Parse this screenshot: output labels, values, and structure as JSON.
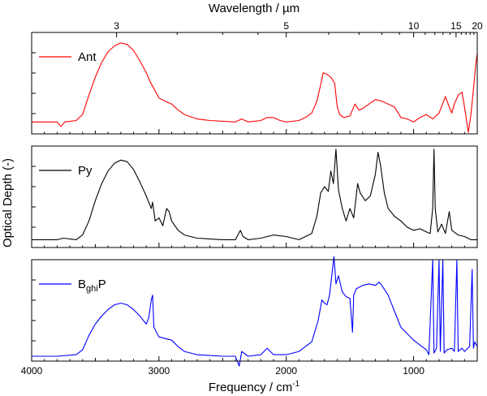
{
  "chart_data": {
    "type": "line",
    "title": "",
    "xlabel": "Frequency / cm",
    "xlabel_sup": "-1",
    "ylabel": "Optical Depth (-)",
    "top_xlabel": "Wavelength / µm",
    "xlim": [
      4000,
      500
    ],
    "xticks": [
      4000,
      3000,
      2000,
      1000
    ],
    "xtick_labels": [
      "4000",
      "3000",
      "2000",
      "1000"
    ],
    "top_xticks": [
      3,
      5,
      10,
      15,
      20
    ],
    "top_xtick_labels": [
      "3",
      "5",
      "10",
      "15",
      "20"
    ],
    "panels": [
      {
        "name": "Ant",
        "legend_parts": [
          "Ant"
        ],
        "color": "#ff0000",
        "ylim": [
          -0.08,
          0.6
        ],
        "points": [
          [
            4000,
            0.0
          ],
          [
            3800,
            0.0
          ],
          [
            3770,
            -0.03
          ],
          [
            3740,
            0.0
          ],
          [
            3650,
            0.01
          ],
          [
            3600,
            0.05
          ],
          [
            3550,
            0.18
          ],
          [
            3500,
            0.3
          ],
          [
            3450,
            0.4
          ],
          [
            3400,
            0.47
          ],
          [
            3350,
            0.51
          ],
          [
            3300,
            0.53
          ],
          [
            3250,
            0.52
          ],
          [
            3200,
            0.48
          ],
          [
            3150,
            0.41
          ],
          [
            3100,
            0.33
          ],
          [
            3070,
            0.27
          ],
          [
            3050,
            0.24
          ],
          [
            3000,
            0.16
          ],
          [
            2950,
            0.14
          ],
          [
            2900,
            0.12
          ],
          [
            2850,
            0.08
          ],
          [
            2800,
            0.05
          ],
          [
            2700,
            0.02
          ],
          [
            2600,
            0.01
          ],
          [
            2400,
            0.0
          ],
          [
            2350,
            0.02
          ],
          [
            2300,
            0.0
          ],
          [
            2200,
            0.01
          ],
          [
            2150,
            0.03
          ],
          [
            2100,
            0.03
          ],
          [
            2050,
            0.01
          ],
          [
            2000,
            0.0
          ],
          [
            1900,
            0.01
          ],
          [
            1850,
            0.03
          ],
          [
            1800,
            0.06
          ],
          [
            1760,
            0.14
          ],
          [
            1730,
            0.25
          ],
          [
            1710,
            0.33
          ],
          [
            1680,
            0.32
          ],
          [
            1650,
            0.3
          ],
          [
            1620,
            0.26
          ],
          [
            1600,
            0.1
          ],
          [
            1580,
            0.05
          ],
          [
            1550,
            0.03
          ],
          [
            1500,
            0.04
          ],
          [
            1460,
            0.12
          ],
          [
            1430,
            0.08
          ],
          [
            1400,
            0.09
          ],
          [
            1350,
            0.12
          ],
          [
            1300,
            0.15
          ],
          [
            1250,
            0.14
          ],
          [
            1200,
            0.12
          ],
          [
            1150,
            0.1
          ],
          [
            1100,
            0.03
          ],
          [
            1050,
            0.02
          ],
          [
            1000,
            0.0
          ],
          [
            950,
            0.03
          ],
          [
            900,
            0.05
          ],
          [
            850,
            0.02
          ],
          [
            800,
            0.06
          ],
          [
            750,
            0.17
          ],
          [
            720,
            0.1
          ],
          [
            700,
            0.06
          ],
          [
            680,
            0.12
          ],
          [
            650,
            0.18
          ],
          [
            620,
            0.2
          ],
          [
            600,
            0.1
          ],
          [
            570,
            -0.07
          ],
          [
            550,
            0.05
          ],
          [
            530,
            0.22
          ],
          [
            510,
            0.4
          ],
          [
            500,
            0.46
          ]
        ]
      },
      {
        "name": "Py",
        "legend_parts": [
          "Py"
        ],
        "color": "#000000",
        "ylim": [
          -0.05,
          0.6
        ],
        "points": [
          [
            4000,
            0.0
          ],
          [
            3800,
            0.0
          ],
          [
            3750,
            0.01
          ],
          [
            3650,
            0.0
          ],
          [
            3600,
            0.03
          ],
          [
            3550,
            0.12
          ],
          [
            3500,
            0.25
          ],
          [
            3450,
            0.36
          ],
          [
            3400,
            0.44
          ],
          [
            3350,
            0.49
          ],
          [
            3300,
            0.51
          ],
          [
            3250,
            0.5
          ],
          [
            3200,
            0.45
          ],
          [
            3150,
            0.37
          ],
          [
            3100,
            0.28
          ],
          [
            3060,
            0.2
          ],
          [
            3050,
            0.24
          ],
          [
            3030,
            0.12
          ],
          [
            3000,
            0.14
          ],
          [
            2970,
            0.09
          ],
          [
            2940,
            0.2
          ],
          [
            2920,
            0.18
          ],
          [
            2900,
            0.12
          ],
          [
            2850,
            0.06
          ],
          [
            2800,
            0.03
          ],
          [
            2700,
            0.01
          ],
          [
            2500,
            0.0
          ],
          [
            2400,
            0.0
          ],
          [
            2360,
            0.06
          ],
          [
            2340,
            0.02
          ],
          [
            2300,
            0.0
          ],
          [
            2200,
            0.01
          ],
          [
            2100,
            0.03
          ],
          [
            2000,
            0.02
          ],
          [
            1900,
            0.0
          ],
          [
            1800,
            0.04
          ],
          [
            1760,
            0.15
          ],
          [
            1730,
            0.3
          ],
          [
            1700,
            0.34
          ],
          [
            1670,
            0.31
          ],
          [
            1650,
            0.44
          ],
          [
            1630,
            0.36
          ],
          [
            1610,
            0.58
          ],
          [
            1590,
            0.32
          ],
          [
            1560,
            0.2
          ],
          [
            1530,
            0.12
          ],
          [
            1500,
            0.2
          ],
          [
            1470,
            0.14
          ],
          [
            1440,
            0.36
          ],
          [
            1420,
            0.3
          ],
          [
            1380,
            0.25
          ],
          [
            1340,
            0.28
          ],
          [
            1300,
            0.42
          ],
          [
            1280,
            0.56
          ],
          [
            1260,
            0.48
          ],
          [
            1230,
            0.3
          ],
          [
            1200,
            0.2
          ],
          [
            1150,
            0.15
          ],
          [
            1100,
            0.12
          ],
          [
            1050,
            0.08
          ],
          [
            1000,
            0.06
          ],
          [
            950,
            0.07
          ],
          [
            900,
            0.05
          ],
          [
            870,
            0.04
          ],
          [
            850,
            0.2
          ],
          [
            840,
            0.58
          ],
          [
            830,
            0.2
          ],
          [
            810,
            0.05
          ],
          [
            780,
            0.1
          ],
          [
            750,
            0.04
          ],
          [
            720,
            0.18
          ],
          [
            700,
            0.06
          ],
          [
            650,
            0.03
          ],
          [
            600,
            0.02
          ],
          [
            550,
            0.0
          ],
          [
            500,
            0.0
          ]
        ]
      },
      {
        "name": "BghiP",
        "legend_parts": [
          "B",
          "ghi",
          "P"
        ],
        "color": "#0000ff",
        "ylim": [
          -0.03,
          0.6
        ],
        "points": [
          [
            4000,
            0.0
          ],
          [
            3800,
            0.0
          ],
          [
            3650,
            0.01
          ],
          [
            3600,
            0.04
          ],
          [
            3550,
            0.13
          ],
          [
            3500,
            0.2
          ],
          [
            3450,
            0.25
          ],
          [
            3400,
            0.29
          ],
          [
            3350,
            0.32
          ],
          [
            3300,
            0.33
          ],
          [
            3250,
            0.32
          ],
          [
            3200,
            0.29
          ],
          [
            3150,
            0.25
          ],
          [
            3100,
            0.2
          ],
          [
            3080,
            0.24
          ],
          [
            3060,
            0.35
          ],
          [
            3050,
            0.38
          ],
          [
            3040,
            0.18
          ],
          [
            3000,
            0.12
          ],
          [
            2950,
            0.11
          ],
          [
            2900,
            0.1
          ],
          [
            2850,
            0.06
          ],
          [
            2800,
            0.03
          ],
          [
            2700,
            0.01
          ],
          [
            2500,
            0.0
          ],
          [
            2400,
            0.0
          ],
          [
            2370,
            -0.06
          ],
          [
            2350,
            0.03
          ],
          [
            2300,
            0.0
          ],
          [
            2200,
            0.01
          ],
          [
            2150,
            0.05
          ],
          [
            2100,
            0.01
          ],
          [
            2000,
            0.01
          ],
          [
            1900,
            0.03
          ],
          [
            1850,
            0.06
          ],
          [
            1800,
            0.09
          ],
          [
            1750,
            0.22
          ],
          [
            1720,
            0.35
          ],
          [
            1700,
            0.33
          ],
          [
            1680,
            0.32
          ],
          [
            1660,
            0.38
          ],
          [
            1640,
            0.52
          ],
          [
            1625,
            0.62
          ],
          [
            1610,
            0.45
          ],
          [
            1590,
            0.5
          ],
          [
            1560,
            0.4
          ],
          [
            1530,
            0.37
          ],
          [
            1500,
            0.36
          ],
          [
            1480,
            0.15
          ],
          [
            1470,
            0.38
          ],
          [
            1450,
            0.42
          ],
          [
            1400,
            0.44
          ],
          [
            1350,
            0.45
          ],
          [
            1300,
            0.44
          ],
          [
            1270,
            0.46
          ],
          [
            1250,
            0.44
          ],
          [
            1200,
            0.38
          ],
          [
            1150,
            0.28
          ],
          [
            1100,
            0.18
          ],
          [
            1050,
            0.14
          ],
          [
            1000,
            0.1
          ],
          [
            950,
            0.07
          ],
          [
            900,
            0.04
          ],
          [
            880,
            0.01
          ],
          [
            850,
            0.6
          ],
          [
            840,
            0.02
          ],
          [
            820,
            0.05
          ],
          [
            800,
            0.6
          ],
          [
            790,
            0.03
          ],
          [
            770,
            0.6
          ],
          [
            760,
            0.02
          ],
          [
            740,
            0.04
          ],
          [
            700,
            0.05
          ],
          [
            680,
            0.03
          ],
          [
            660,
            0.6
          ],
          [
            650,
            0.03
          ],
          [
            620,
            0.05
          ],
          [
            600,
            0.03
          ],
          [
            560,
            0.06
          ],
          [
            540,
            0.54
          ],
          [
            530,
            0.05
          ],
          [
            520,
            0.09
          ],
          [
            500,
            0.06
          ]
        ]
      }
    ]
  }
}
